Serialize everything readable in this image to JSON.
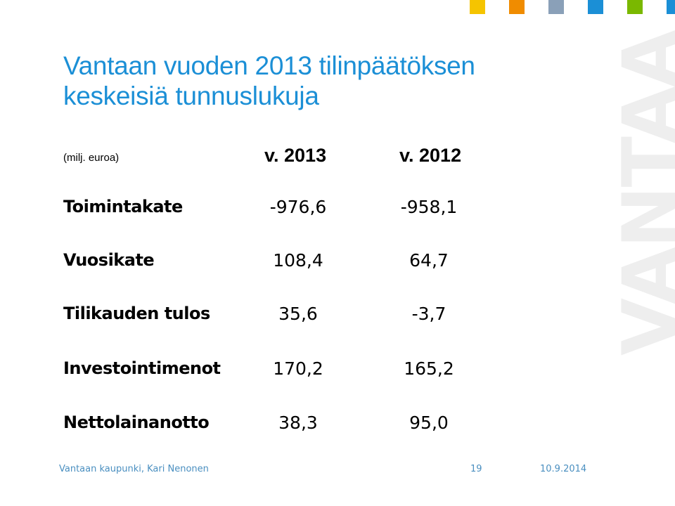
{
  "slide": {
    "title_line1": "Vantaan vuoden 2013 tilinpäätöksen",
    "title_line2": "keskeisiä tunnuslukuja",
    "unit_label": "(milj. euroa)",
    "column_headers": [
      "v. 2013",
      "v. 2012"
    ],
    "rows": [
      {
        "label": "Toimintakate",
        "v2013": "-976,6",
        "v2012": "-958,1"
      },
      {
        "label": "Vuosikate",
        "v2013": "108,4",
        "v2012": "64,7"
      },
      {
        "label": "Tilikauden tulos",
        "v2013": "35,6",
        "v2012": "-3,7"
      },
      {
        "label": "Investointimenot",
        "v2013": "170,2",
        "v2012": "165,2"
      },
      {
        "label": "Nettolainanotto",
        "v2013": "38,3",
        "v2012": "95,0"
      }
    ],
    "brand_text": "VANTAA",
    "decor_colors": [
      "#f5c400",
      "#f08c00",
      "#8aa0b8",
      "#1b8fd6",
      "#7ab800",
      "#1b8fd6"
    ]
  },
  "footer": {
    "author": "Vantaan kaupunki, Kari Nenonen",
    "page_number": "19",
    "date": "10.9.2014"
  }
}
